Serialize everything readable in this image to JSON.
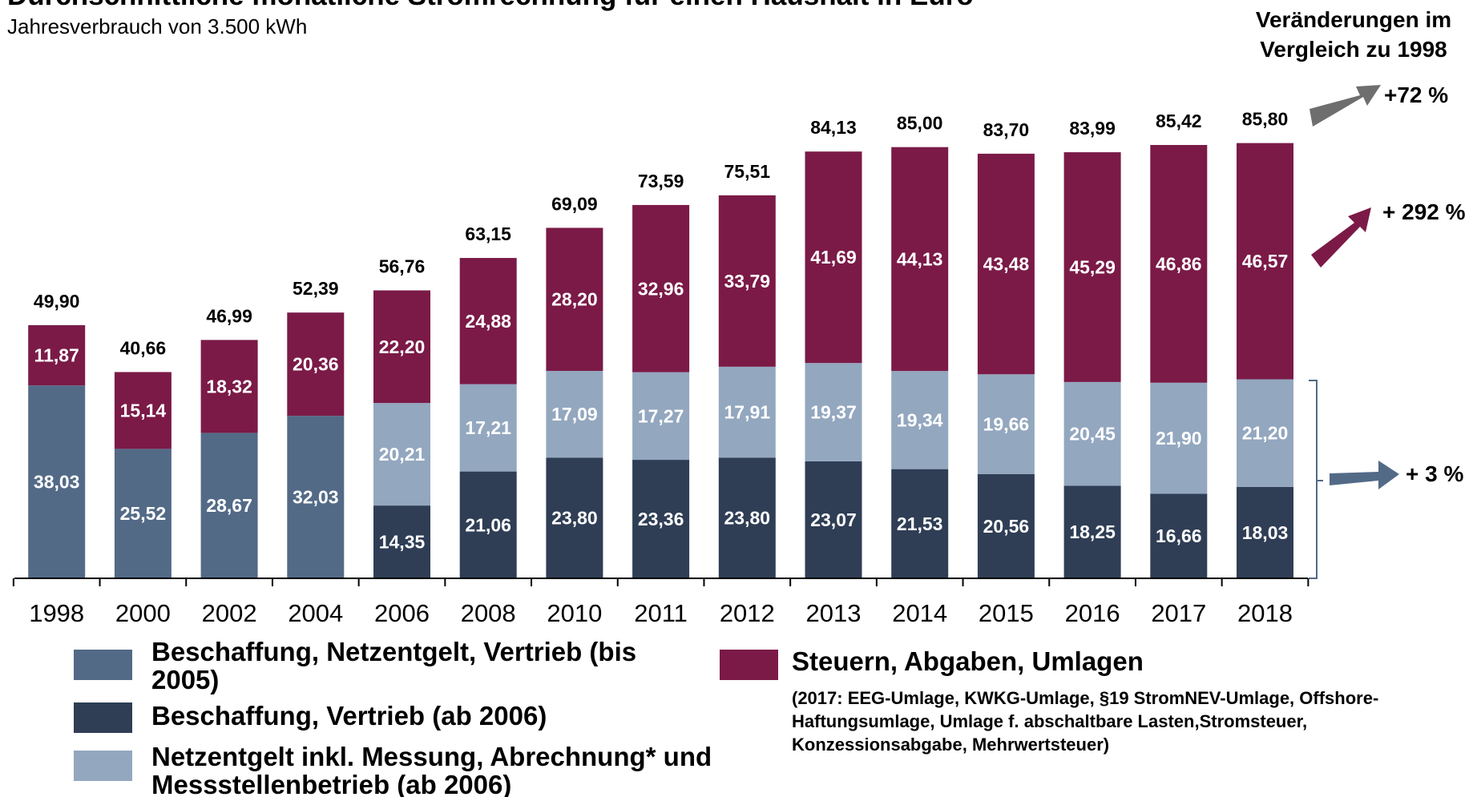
{
  "chart_data": {
    "type": "stacked_bar",
    "title": "Durchschnittliche monatliche Stromrechnung für einen Haushalt in Euro",
    "subtitle": "Jahresverbrauch von 3.500 kWh",
    "change_header": [
      "Veränderungen im",
      "Vergleich zu 1998"
    ],
    "categories": [
      "1998",
      "2000",
      "2002",
      "2004",
      "2006",
      "2008",
      "2010",
      "2011",
      "2012",
      "2013",
      "2014",
      "2015",
      "2016",
      "2017",
      "2018"
    ],
    "ylim": [
      0,
      90
    ],
    "series": [
      {
        "name": "Beschaffung, Netzentgelt, Vertrieb (bis 2005)",
        "color": "#536a87",
        "values": [
          38.03,
          25.52,
          28.67,
          32.03,
          null,
          null,
          null,
          null,
          null,
          null,
          null,
          null,
          null,
          null,
          null
        ],
        "value_labels": [
          "38,03",
          "25,52",
          "28,67",
          "32,03",
          null,
          null,
          null,
          null,
          null,
          null,
          null,
          null,
          null,
          null,
          null
        ]
      },
      {
        "name": "Beschaffung, Vertrieb (ab 2006)",
        "color": "#2f3e55",
        "values": [
          null,
          null,
          null,
          null,
          14.35,
          21.06,
          23.8,
          23.36,
          23.8,
          23.07,
          21.53,
          20.56,
          18.25,
          16.66,
          18.03
        ],
        "value_labels": [
          null,
          null,
          null,
          null,
          "14,35",
          "21,06",
          "23,80",
          "23,36",
          "23,80",
          "23,07",
          "21,53",
          "20,56",
          "18,25",
          "16,66",
          "18,03"
        ]
      },
      {
        "name": "Netzentgelt inkl. Messung, Abrechnung* und Messstellenbetrieb (ab 2006)",
        "color": "#93a7bf",
        "values": [
          null,
          null,
          null,
          null,
          20.21,
          17.21,
          17.09,
          17.27,
          17.91,
          19.37,
          19.34,
          19.66,
          20.45,
          21.9,
          21.2
        ],
        "value_labels": [
          null,
          null,
          null,
          null,
          "20,21",
          "17,21",
          "17,09",
          "17,27",
          "17,91",
          "19,37",
          "19,34",
          "19,66",
          "20,45",
          "21,90",
          "21,20"
        ]
      },
      {
        "name": "Steuern, Abgaben, Umlagen",
        "color": "#7b1a47",
        "values": [
          11.87,
          15.14,
          18.32,
          20.36,
          22.2,
          24.88,
          28.2,
          32.96,
          33.79,
          41.69,
          44.13,
          43.48,
          45.29,
          46.86,
          46.57
        ],
        "value_labels": [
          "11,87",
          "15,14",
          "18,32",
          "20,36",
          "22,20",
          "24,88",
          "28,20",
          "32,96",
          "33,79",
          "41,69",
          "44,13",
          "43,48",
          "45,29",
          "46,86",
          "46,57"
        ]
      }
    ],
    "totals": [
      49.9,
      40.66,
      46.99,
      52.39,
      56.76,
      63.15,
      69.09,
      73.59,
      75.51,
      84.13,
      85.0,
      83.7,
      83.99,
      85.42,
      85.8
    ],
    "total_labels": [
      "49,90",
      "40,66",
      "46,99",
      "52,39",
      "56,76",
      "63,15",
      "69,09",
      "73,59",
      "75,51",
      "84,13",
      "85,00",
      "83,70",
      "83,99",
      "85,42",
      "85,80"
    ],
    "annotations": [
      "+72 %",
      "+ 292 %",
      "+ 3 %"
    ],
    "legend_note": "(2017: EEG-Umlage, KWKG-Umlage, §19 StromNEV-Umlage, Offshore-Haftungsumlage,  Umlage f. abschaltbare Lasten,Stromsteuer, Konzessionsabgabe, Mehrwertsteuer)"
  }
}
